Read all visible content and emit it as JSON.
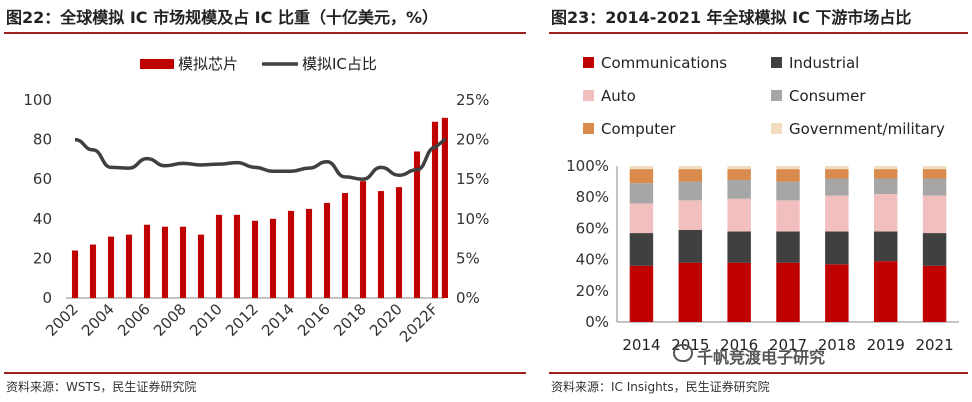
{
  "left": {
    "title": "图22：全球模拟 IC 市场规模及占 IC 比重（十亿美元，%）",
    "source": "资料来源：WSTS，民生证券研究院"
  },
  "right": {
    "title": "图23：2014-2021 年全球模拟 IC 下游市场占比",
    "source": "资料来源：IC Insights，民生证券研究院",
    "watermark": "千帆竞渡电子研究"
  },
  "colors": {
    "bar_red": "#c00000",
    "line_gray": "#404040",
    "communications": "#c00000",
    "industrial": "#404040",
    "auto": "#f2bfbf",
    "consumer": "#a6a6a6",
    "computer": "#d98b4e",
    "government": "#f2dcc0"
  },
  "chart_data": [
    {
      "type": "bar",
      "categories": [
        "2002",
        "2003",
        "2004",
        "2005",
        "2006",
        "2007",
        "2008",
        "2009",
        "2010",
        "2011",
        "2012",
        "2013",
        "2014",
        "2015",
        "2016",
        "2017",
        "2018",
        "2019",
        "2020",
        "2021",
        "2022F"
      ],
      "x_tick_labels": [
        "2002",
        "2004",
        "2006",
        "2008",
        "2010",
        "2012",
        "2014",
        "2016",
        "2018",
        "2020",
        "2022F"
      ],
      "series": [
        {
          "name": "模拟芯片",
          "type": "bar",
          "axis": "left",
          "values": [
            24,
            27,
            31,
            32,
            37,
            36,
            36,
            32,
            42,
            42,
            39,
            40,
            44,
            45,
            48,
            53,
            59,
            54,
            56,
            74,
            89
          ]
        },
        {
          "name": "模拟IC占比",
          "type": "line",
          "axis": "right",
          "values": [
            20.0,
            18.7,
            16.5,
            16.4,
            17.6,
            16.7,
            17.0,
            16.8,
            16.9,
            17.1,
            16.5,
            16.0,
            16.0,
            16.4,
            17.2,
            15.3,
            15.0,
            16.5,
            15.5,
            16.2,
            19.0
          ]
        }
      ],
      "extra_bar": {
        "category_index": 20,
        "value": 91
      },
      "ylim": [
        0,
        100
      ],
      "yticks": [
        "0",
        "20",
        "40",
        "60",
        "80",
        "100"
      ],
      "y2lim": [
        0,
        25
      ],
      "y2ticks": [
        "0%",
        "5%",
        "10%",
        "15%",
        "20%",
        "25%"
      ],
      "legend_position": "top-center",
      "grid": false
    },
    {
      "type": "bar",
      "stacked": true,
      "categories": [
        "2014",
        "2015",
        "2016",
        "2017",
        "2018",
        "2019",
        "2021"
      ],
      "x_tick_labels": [
        "2014",
        "2015",
        "2016",
        "2017",
        "2018",
        "2019",
        "2021"
      ],
      "series": [
        {
          "name": "Communications",
          "values": [
            36,
            38,
            38,
            38,
            37,
            39,
            36
          ]
        },
        {
          "name": "Industrial",
          "values": [
            21,
            21,
            20,
            20,
            21,
            19,
            21
          ]
        },
        {
          "name": "Auto",
          "values": [
            19,
            19,
            21,
            20,
            23,
            24,
            24
          ]
        },
        {
          "name": "Consumer",
          "values": [
            13,
            12,
            12,
            12,
            11,
            10,
            11
          ]
        },
        {
          "name": "Computer",
          "values": [
            9,
            8,
            7,
            8,
            6,
            6,
            6
          ]
        },
        {
          "name": "Government/military",
          "values": [
            2,
            2,
            2,
            2,
            2,
            2,
            2
          ]
        }
      ],
      "ylim": [
        0,
        100
      ],
      "yticks": [
        "0%",
        "20%",
        "40%",
        "60%",
        "80%",
        "100%"
      ],
      "legend_position": "top",
      "grid": false
    }
  ]
}
